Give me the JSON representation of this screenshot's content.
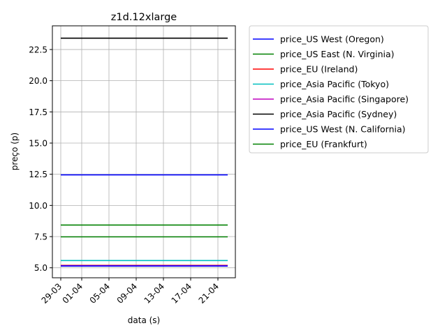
{
  "chart_data": {
    "type": "line",
    "title": "z1d.12xlarge",
    "xlabel": "data (s)",
    "ylabel": "preço (p)",
    "x_ticks": [
      "29-03",
      "01-04",
      "05-04",
      "09-04",
      "13-04",
      "17-04",
      "21-04"
    ],
    "x_range": [
      "29-03",
      "24-04"
    ],
    "ylim": [
      4.2,
      24.4
    ],
    "y_ticks": [
      "5.0",
      "7.5",
      "10.0",
      "12.5",
      "15.0",
      "17.5",
      "20.0",
      "22.5"
    ],
    "grid": true,
    "legend_position": "outside right",
    "series": [
      {
        "name": "price_US West (Oregon)",
        "color": "#0000ff",
        "x": [
          "29-03",
          "24-04"
        ],
        "values": [
          12.45,
          12.45
        ]
      },
      {
        "name": "price_US East (N. Virginia)",
        "color": "#008000",
        "x": [
          "29-03",
          "24-04"
        ],
        "values": [
          7.48,
          7.48
        ]
      },
      {
        "name": "price_EU (Ireland)",
        "color": "#ff0000",
        "x": [
          "29-03",
          "24-04"
        ],
        "values": [
          5.19,
          5.19
        ]
      },
      {
        "name": "price_Asia Pacific (Tokyo)",
        "color": "#00bfbf",
        "x": [
          "29-03",
          "24-04"
        ],
        "values": [
          5.58,
          5.58
        ]
      },
      {
        "name": "price_Asia Pacific (Singapore)",
        "color": "#bf00bf",
        "x": [
          "29-03",
          "24-04"
        ],
        "values": [
          5.16,
          5.16
        ]
      },
      {
        "name": "price_Asia Pacific (Sydney)",
        "color": "#000000",
        "x": [
          "29-03",
          "24-04"
        ],
        "values": [
          23.41,
          23.41
        ]
      },
      {
        "name": "price_US West (N. California)",
        "color": "#0000ff",
        "x": [
          "29-03",
          "24-04"
        ],
        "values": [
          5.14,
          5.14
        ]
      },
      {
        "name": "price_EU (Frankfurt)",
        "color": "#008000",
        "x": [
          "29-03",
          "24-04"
        ],
        "values": [
          8.43,
          8.43
        ]
      }
    ]
  }
}
